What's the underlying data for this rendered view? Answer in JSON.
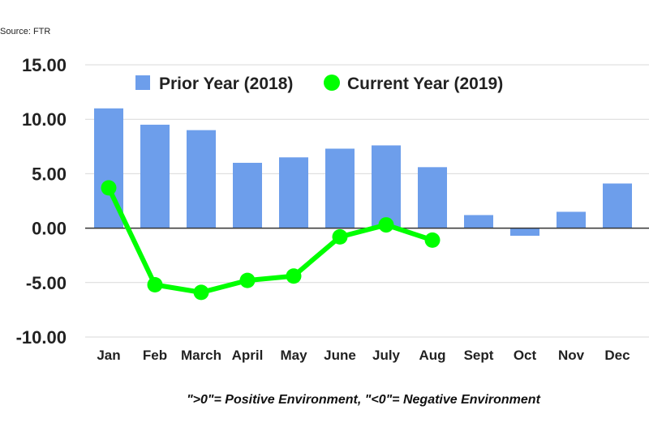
{
  "source": "Source: FTR",
  "note": "\">0\"= Positive Environment, \"<0\"= Negative Environment",
  "colors": {
    "bar": "#6d9eeb",
    "line": "#00ff00",
    "grid": "#d9d9d9",
    "zero": "#333333"
  },
  "chart_data": {
    "type": "bar",
    "title": "",
    "xlabel": "",
    "ylabel": "",
    "ylim": [
      -10,
      15
    ],
    "yticks": [
      "15.00",
      "10.00",
      "5.00",
      "0.00",
      "-5.00",
      "-10.00"
    ],
    "ytick_values": [
      15,
      10,
      5,
      0,
      -5,
      -10
    ],
    "grid": true,
    "legend_position": "top",
    "categories": [
      "Jan",
      "Feb",
      "March",
      "April",
      "May",
      "June",
      "July",
      "Aug",
      "Sept",
      "Oct",
      "Nov",
      "Dec"
    ],
    "series": [
      {
        "name": "Prior Year (2018)",
        "type": "bar",
        "values": [
          11.0,
          9.5,
          9.0,
          6.0,
          6.5,
          7.3,
          7.6,
          5.6,
          1.2,
          -0.7,
          1.5,
          4.1
        ]
      },
      {
        "name": "Current Year (2019)",
        "type": "line",
        "values": [
          3.7,
          -5.2,
          -5.9,
          -4.8,
          -4.4,
          -0.8,
          0.3,
          -1.1,
          null,
          null,
          null,
          null
        ]
      }
    ]
  }
}
